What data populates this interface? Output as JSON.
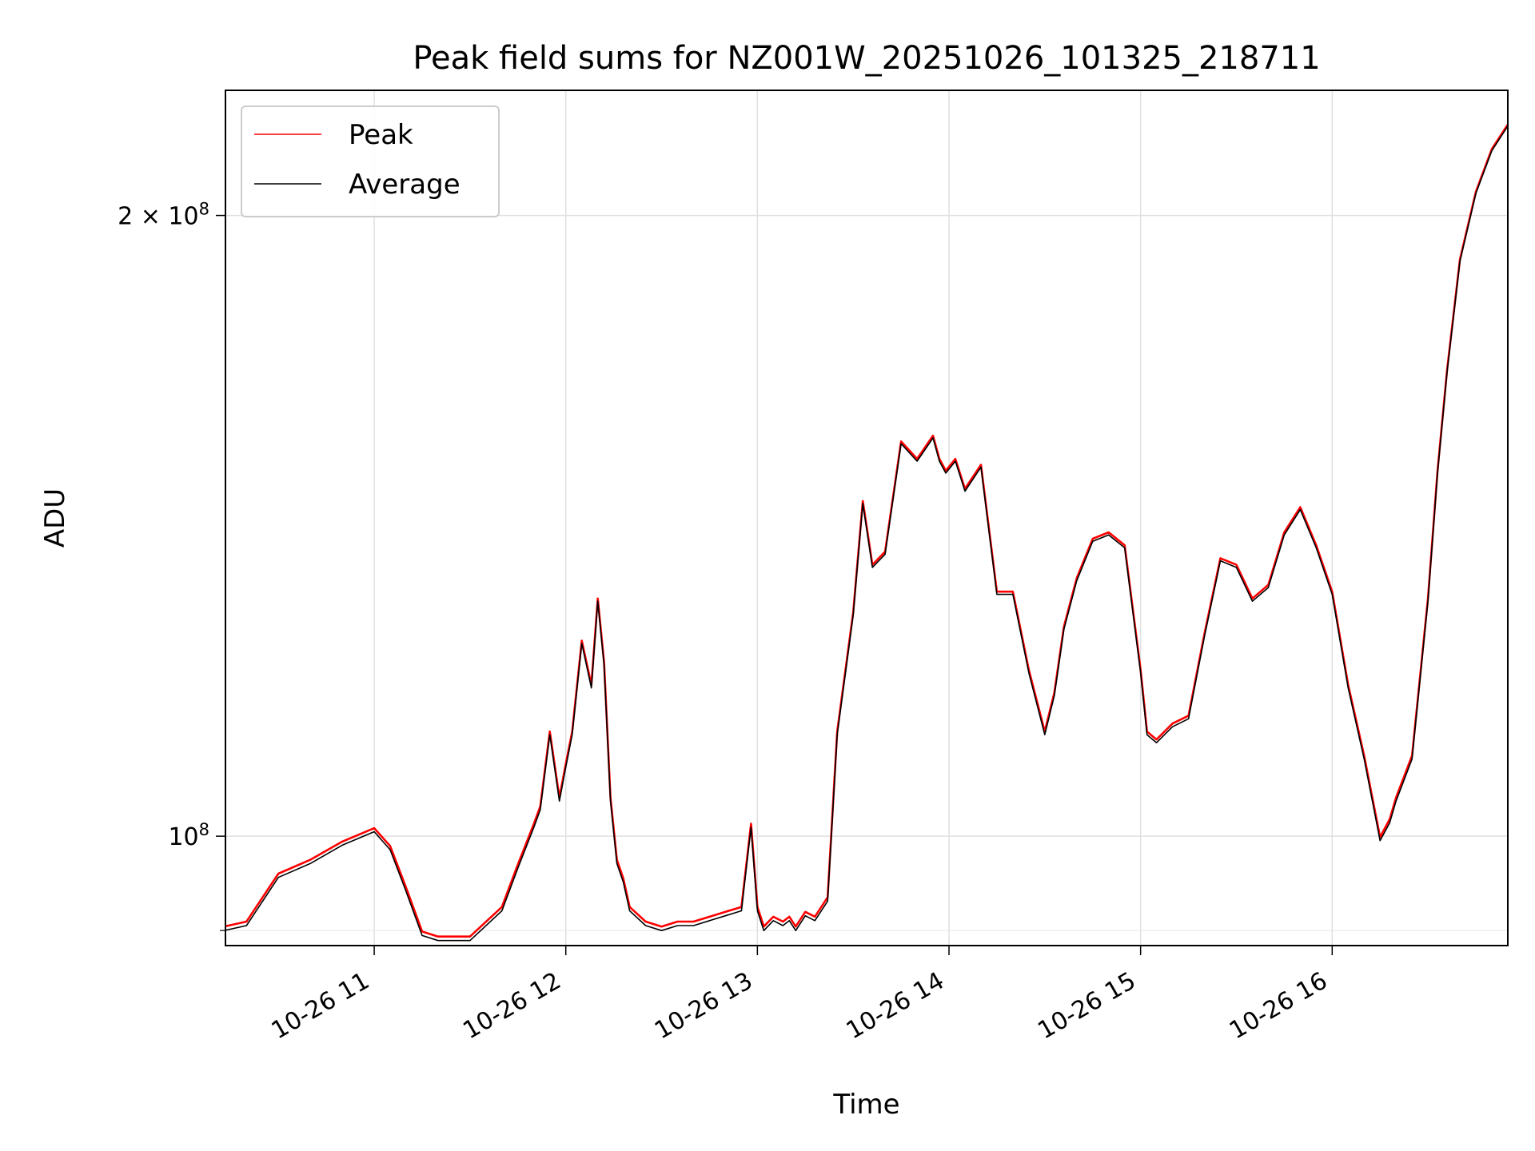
{
  "chart_data": {
    "type": "line",
    "title": "Peak field sums for NZ001W_20251026_101325_218711",
    "xlabel": "Time",
    "ylabel": "ADU",
    "x_axis": {
      "type": "time",
      "range": [
        "2025-10-26T10:13:25",
        "2025-10-26T16:55:00"
      ],
      "ticks": [
        "2025-10-26T11:00",
        "2025-10-26T12:00",
        "2025-10-26T13:00",
        "2025-10-26T14:00",
        "2025-10-26T15:00",
        "2025-10-26T16:00"
      ],
      "tick_labels": [
        "10-26 11",
        "10-26 12",
        "10-26 13",
        "10-26 14",
        "10-26 15",
        "10-26 16"
      ]
    },
    "y_axis": {
      "scale": "log",
      "range": [
        88500000,
        230000000
      ],
      "ticks": [
        100000000,
        200000000
      ],
      "tick_labels": [
        {
          "base": "10",
          "exp": "8"
        },
        {
          "base": "2 × 10",
          "exp": "8"
        }
      ],
      "minor_ticks": [
        90000000
      ]
    },
    "grid": true,
    "legend": {
      "position": "top-left"
    },
    "series": [
      {
        "name": "Peak",
        "color": "#ff0000",
        "offset": 400000,
        "x": [
          "10:13",
          "10:20",
          "10:30",
          "10:40",
          "10:50",
          "11:00",
          "11:05",
          "11:10",
          "11:15",
          "11:20",
          "11:25",
          "11:30",
          "11:40",
          "11:45",
          "11:50",
          "11:52",
          "11:55",
          "11:58",
          "12:00",
          "12:02",
          "12:05",
          "12:08",
          "12:10",
          "12:12",
          "12:14",
          "12:16",
          "12:18",
          "12:20",
          "12:25",
          "12:30",
          "12:35",
          "12:40",
          "12:45",
          "12:50",
          "12:55",
          "12:58",
          "13:00",
          "13:02",
          "13:05",
          "13:08",
          "13:10",
          "13:12",
          "13:15",
          "13:18",
          "13:22",
          "13:25",
          "13:30",
          "13:33",
          "13:36",
          "13:40",
          "13:45",
          "13:50",
          "13:55",
          "13:57",
          "13:59",
          "14:02",
          "14:05",
          "14:10",
          "14:15",
          "14:20",
          "14:25",
          "14:30",
          "14:33",
          "14:36",
          "14:40",
          "14:45",
          "14:50",
          "14:55",
          "15:00",
          "15:02",
          "15:05",
          "15:10",
          "15:15",
          "15:20",
          "15:25",
          "15:30",
          "15:35",
          "15:40",
          "15:45",
          "15:50",
          "15:55",
          "16:00",
          "16:05",
          "16:10",
          "16:15",
          "16:18",
          "16:20",
          "16:25",
          "16:30",
          "16:33",
          "16:36",
          "16:40",
          "16:45",
          "16:50",
          "16:55"
        ],
        "y": [
          90000000,
          90500000,
          95500000,
          97000000,
          99000000,
          100500000,
          98500000,
          94000000,
          89500000,
          89000000,
          89000000,
          89000000,
          92000000,
          96500000,
          101000000,
          103000000,
          112000000,
          104000000,
          108000000,
          112000000,
          124000000,
          118000000,
          130000000,
          121000000,
          104000000,
          97000000,
          95000000,
          92000000,
          90500000,
          90000000,
          90500000,
          90500000,
          91000000,
          91500000,
          92000000,
          101000000,
          92000000,
          90000000,
          91000000,
          90500000,
          91000000,
          90000000,
          91500000,
          91000000,
          93000000,
          112000000,
          128000000,
          145000000,
          135000000,
          137000000,
          155000000,
          152000000,
          156000000,
          152000000,
          150000000,
          152000000,
          147000000,
          151000000,
          131000000,
          131000000,
          120000000,
          112000000,
          117000000,
          126000000,
          133000000,
          139000000,
          140000000,
          138000000,
          120000000,
          112000000,
          111000000,
          113000000,
          114000000,
          125000000,
          136000000,
          135000000,
          130000000,
          132000000,
          140000000,
          144000000,
          138000000,
          131000000,
          118000000,
          109000000,
          99500000,
          101500000,
          104000000,
          109000000,
          130000000,
          150000000,
          168000000,
          190000000,
          205000000,
          215000000,
          221000000
        ]
      },
      {
        "name": "Average",
        "color": "#000000",
        "offset": 0,
        "x": [
          "10:13",
          "10:20",
          "10:30",
          "10:40",
          "10:50",
          "11:00",
          "11:05",
          "11:10",
          "11:15",
          "11:20",
          "11:25",
          "11:30",
          "11:40",
          "11:45",
          "11:50",
          "11:52",
          "11:55",
          "11:58",
          "12:00",
          "12:02",
          "12:05",
          "12:08",
          "12:10",
          "12:12",
          "12:14",
          "12:16",
          "12:18",
          "12:20",
          "12:25",
          "12:30",
          "12:35",
          "12:40",
          "12:45",
          "12:50",
          "12:55",
          "12:58",
          "13:00",
          "13:02",
          "13:05",
          "13:08",
          "13:10",
          "13:12",
          "13:15",
          "13:18",
          "13:22",
          "13:25",
          "13:30",
          "13:33",
          "13:36",
          "13:40",
          "13:45",
          "13:50",
          "13:55",
          "13:57",
          "13:59",
          "14:02",
          "14:05",
          "14:10",
          "14:15",
          "14:20",
          "14:25",
          "14:30",
          "14:33",
          "14:36",
          "14:40",
          "14:45",
          "14:50",
          "14:55",
          "15:00",
          "15:02",
          "15:05",
          "15:10",
          "15:15",
          "15:20",
          "15:25",
          "15:30",
          "15:35",
          "15:40",
          "15:45",
          "15:50",
          "15:55",
          "16:00",
          "16:05",
          "16:10",
          "16:15",
          "16:18",
          "16:20",
          "16:25",
          "16:30",
          "16:33",
          "16:36",
          "16:40",
          "16:45",
          "16:50",
          "16:55"
        ],
        "y": [
          90000000,
          90500000,
          95500000,
          97000000,
          99000000,
          100500000,
          98500000,
          94000000,
          89500000,
          89000000,
          89000000,
          89000000,
          92000000,
          96500000,
          101000000,
          103000000,
          112000000,
          104000000,
          108000000,
          112000000,
          124000000,
          118000000,
          130000000,
          121000000,
          104000000,
          97000000,
          95000000,
          92000000,
          90500000,
          90000000,
          90500000,
          90500000,
          91000000,
          91500000,
          92000000,
          101000000,
          92000000,
          90000000,
          91000000,
          90500000,
          91000000,
          90000000,
          91500000,
          91000000,
          93000000,
          112000000,
          128000000,
          145000000,
          135000000,
          137000000,
          155000000,
          152000000,
          156000000,
          152000000,
          150000000,
          152000000,
          147000000,
          151000000,
          131000000,
          131000000,
          120000000,
          112000000,
          117000000,
          126000000,
          133000000,
          139000000,
          140000000,
          138000000,
          120000000,
          112000000,
          111000000,
          113000000,
          114000000,
          125000000,
          136000000,
          135000000,
          130000000,
          132000000,
          140000000,
          144000000,
          138000000,
          131000000,
          118000000,
          109000000,
          99500000,
          101500000,
          104000000,
          109000000,
          130000000,
          150000000,
          168000000,
          190000000,
          205000000,
          215000000,
          221000000
        ]
      }
    ]
  }
}
